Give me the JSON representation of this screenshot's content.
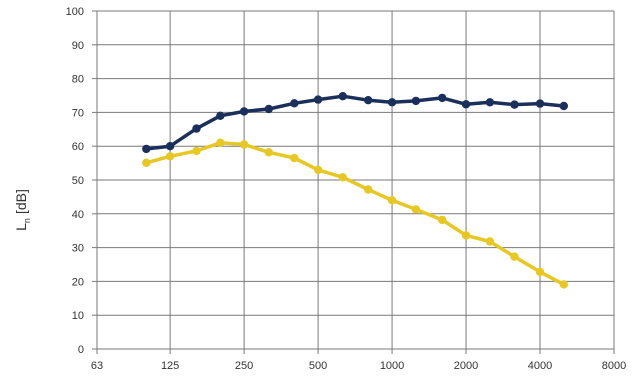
{
  "chart_data": {
    "type": "line",
    "title": "",
    "xlabel": "",
    "ylabel": {
      "main": "L",
      "subscript": "n",
      "unit": "[dB]"
    },
    "x_scale": "log",
    "x_tick_labels": [
      "63",
      "125",
      "250",
      "500",
      "1000",
      "2000",
      "4000",
      "8000"
    ],
    "x_ticks": [
      63,
      125,
      250,
      500,
      1000,
      2000,
      4000,
      8000
    ],
    "x": [
      100,
      125,
      160,
      200,
      250,
      315,
      400,
      500,
      630,
      800,
      1000,
      1250,
      1600,
      2000,
      2500,
      3150,
      4000,
      5000
    ],
    "ylim": [
      0,
      100
    ],
    "y_ticks": [
      0,
      10,
      20,
      30,
      40,
      50,
      60,
      70,
      80,
      90,
      100
    ],
    "grid": true,
    "legend": "none",
    "series": [
      {
        "color": "#1b2f5b",
        "values": [
          59.2,
          60.0,
          65.2,
          69.0,
          70.3,
          71.0,
          72.7,
          73.8,
          74.8,
          73.6,
          73.0,
          73.4,
          74.3,
          72.4,
          73.0,
          72.3,
          72.6,
          71.9
        ]
      },
      {
        "color": "#e6c726",
        "values": [
          55.1,
          57.0,
          58.6,
          61.0,
          60.5,
          58.2,
          56.5,
          53.0,
          50.8,
          47.2,
          44.0,
          41.3,
          38.2,
          33.6,
          31.8,
          27.3,
          22.8,
          19.1
        ]
      }
    ]
  }
}
